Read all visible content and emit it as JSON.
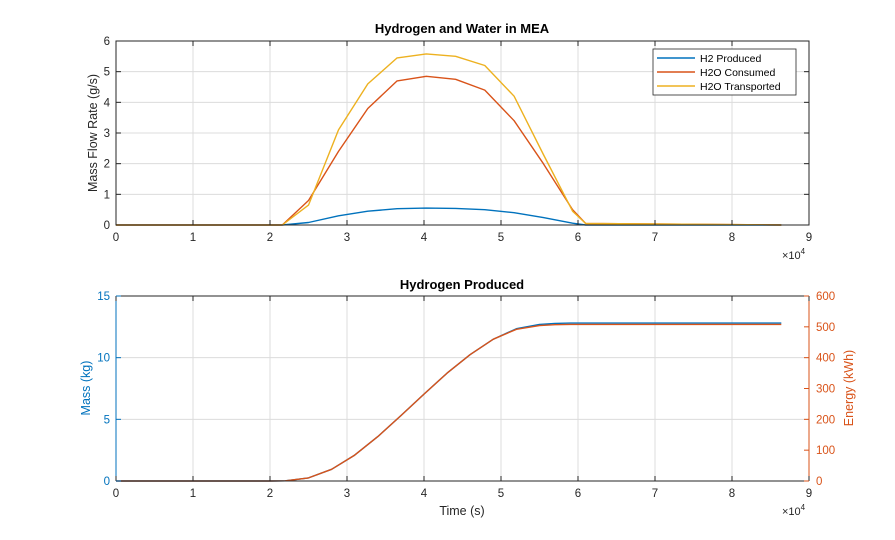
{
  "colors": {
    "background": "#ffffff",
    "axis": "#262626",
    "grid": "#dcdcdc",
    "blue": "#0072BD",
    "orange": "#D95319",
    "yellow": "#EDB120"
  },
  "chart_data": [
    {
      "type": "line",
      "title": "Hydrogen and Water in MEA",
      "xlabel": "",
      "ylabel": "Mass Flow Rate (g/s)",
      "xlim": [
        0,
        90000
      ],
      "ylim": [
        0,
        6
      ],
      "x_ticks": [
        "0",
        "1",
        "2",
        "3",
        "4",
        "5",
        "6",
        "7",
        "8",
        "9"
      ],
      "y_ticks": [
        "0",
        "1",
        "2",
        "3",
        "4",
        "5",
        "6"
      ],
      "x_exponent": "×10",
      "x_exponent_power": "4",
      "grid": true,
      "legend_position": "top-right",
      "series": [
        {
          "name": "H2 Produced",
          "color": "#0072BD",
          "x": [
            0,
            20000,
            21600,
            25000,
            28900,
            32700,
            36500,
            40300,
            44100,
            47900,
            51700,
            55500,
            59300,
            61000,
            86400
          ],
          "y": [
            0,
            0,
            0,
            0.08,
            0.3,
            0.45,
            0.53,
            0.55,
            0.54,
            0.5,
            0.4,
            0.24,
            0.06,
            0,
            0
          ]
        },
        {
          "name": "H2O Consumed",
          "color": "#D95319",
          "x": [
            0,
            20000,
            21600,
            25000,
            28900,
            32700,
            36500,
            40300,
            44100,
            47900,
            51700,
            55500,
            59300,
            61000,
            86400
          ],
          "y": [
            0,
            0,
            0,
            0.8,
            2.4,
            3.8,
            4.7,
            4.85,
            4.75,
            4.4,
            3.4,
            2.0,
            0.5,
            0.05,
            0
          ]
        },
        {
          "name": "H2O Transported",
          "color": "#EDB120",
          "x": [
            0,
            20000,
            21600,
            25000,
            28900,
            32700,
            36500,
            40300,
            44100,
            47900,
            51700,
            55500,
            59300,
            61000,
            86400
          ],
          "y": [
            0,
            0,
            0,
            0.65,
            3.1,
            4.6,
            5.45,
            5.58,
            5.5,
            5.2,
            4.2,
            2.3,
            0.45,
            0.05,
            0
          ]
        }
      ]
    },
    {
      "type": "line",
      "title": "Hydrogen Produced",
      "xlabel": "Time (s)",
      "ylabel": "Mass (kg)",
      "ylabel_right": "Energy (kWh)",
      "xlim": [
        0,
        90000
      ],
      "ylim": [
        0,
        15
      ],
      "ylim_right": [
        0,
        600
      ],
      "x_ticks": [
        "0",
        "1",
        "2",
        "3",
        "4",
        "5",
        "6",
        "7",
        "8",
        "9"
      ],
      "y_ticks": [
        "0",
        "5",
        "10",
        "15"
      ],
      "y_ticks_right": [
        "0",
        "100",
        "200",
        "300",
        "400",
        "500",
        "600"
      ],
      "x_exponent": "×10",
      "x_exponent_power": "4",
      "grid": true,
      "series": [
        {
          "axis": "left",
          "color": "#0072BD",
          "x": [
            0,
            20000,
            22000,
            25000,
            28000,
            31000,
            34000,
            37000,
            40000,
            43000,
            46000,
            49000,
            52000,
            55000,
            57000,
            59000,
            61000,
            86400
          ],
          "y": [
            0,
            0,
            0.02,
            0.25,
            0.95,
            2.1,
            3.6,
            5.3,
            7.05,
            8.75,
            10.25,
            11.5,
            12.35,
            12.7,
            12.78,
            12.8,
            12.8,
            12.8
          ]
        },
        {
          "axis": "right",
          "color": "#D95319",
          "x": [
            0,
            20000,
            22000,
            25000,
            28000,
            31000,
            34000,
            37000,
            40000,
            43000,
            46000,
            49000,
            52000,
            55000,
            57000,
            59000,
            61000,
            86400
          ],
          "y": [
            0,
            0,
            0.8,
            10,
            38,
            84,
            144,
            212,
            282,
            350,
            410,
            460,
            492,
            504,
            507,
            508,
            508,
            508
          ]
        }
      ]
    }
  ]
}
